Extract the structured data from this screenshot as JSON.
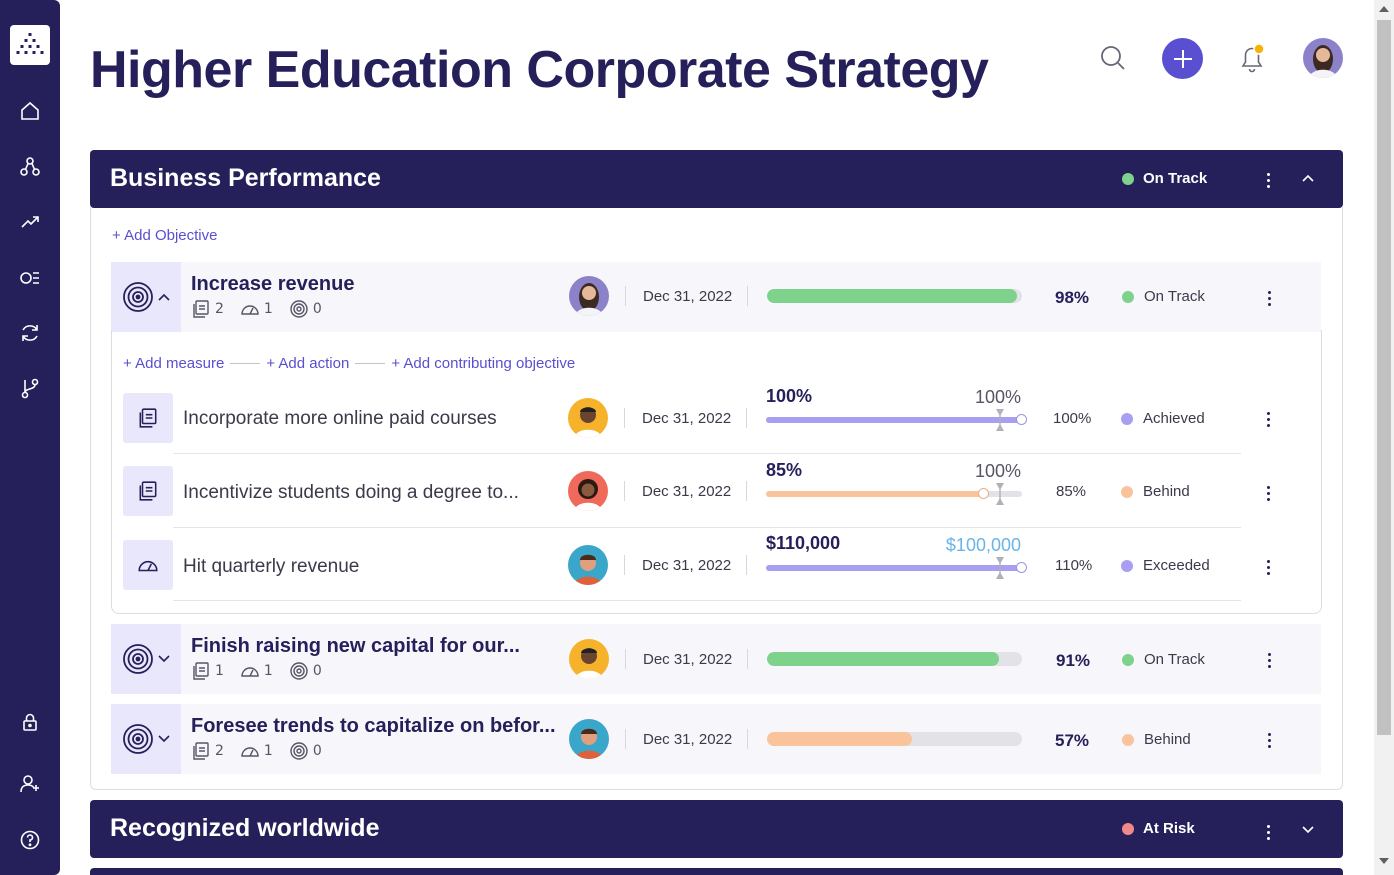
{
  "page": {
    "title": "Higher Education Corporate Strategy"
  },
  "colors": {
    "navy": "#25205a",
    "accent": "#5a4fd0",
    "on_track": "#7fd28b",
    "behind": "#f9c49b",
    "achieved": "#a99ff2",
    "at_risk": "#f08a8a",
    "notification_dot": "#f5b400"
  },
  "sidebar": {
    "logo": "app-logo",
    "items": [
      {
        "icon": "home-icon"
      },
      {
        "icon": "hierarchy-icon"
      },
      {
        "icon": "trending-up-icon"
      },
      {
        "icon": "checklist-icon"
      },
      {
        "icon": "sync-icon"
      },
      {
        "icon": "branch-icon"
      },
      {
        "icon": "lock-icon"
      },
      {
        "icon": "add-user-icon"
      },
      {
        "icon": "help-icon"
      }
    ]
  },
  "topbar": {
    "icons": [
      "search-icon",
      "plus-icon",
      "bell-icon",
      "avatar"
    ]
  },
  "sections": [
    {
      "title": "Business Performance",
      "status": "On Track",
      "add_objective": "+ Add Objective",
      "expanded_links": {
        "add_measure": "+ Add measure",
        "add_action": "+ Add action",
        "add_contributing": "+ Add contributing objective"
      },
      "objectives": [
        {
          "title": "Increase revenue",
          "counts": {
            "measures": "2",
            "metrics": "1",
            "objectives": "0"
          },
          "date": "Dec 31, 2022",
          "progress": 98,
          "pct": "98%",
          "status": "On Track"
        },
        {
          "title": "Finish raising new capital for our...",
          "counts": {
            "measures": "1",
            "metrics": "1",
            "objectives": "0"
          },
          "date": "Dec 31, 2022",
          "progress": 91,
          "pct": "91%",
          "status": "On Track"
        },
        {
          "title": "Foresee trends to capitalize on befor...",
          "counts": {
            "measures": "2",
            "metrics": "1",
            "objectives": "0"
          },
          "date": "Dec 31, 2022",
          "progress": 57,
          "pct": "57%",
          "status": "Behind"
        }
      ],
      "measures": [
        {
          "title": "Incorporate more online paid courses",
          "date": "Dec 31, 2022",
          "current": "100%",
          "target": "100%",
          "progress": 100,
          "pct": "100%",
          "status": "Achieved"
        },
        {
          "title": "Incentivize students doing a degree to...",
          "date": "Dec 31, 2022",
          "current": "85%",
          "target": "100%",
          "progress": 85,
          "pct": "85%",
          "status": "Behind"
        },
        {
          "title": "Hit quarterly revenue",
          "date": "Dec 31, 2022",
          "current": "$110,000",
          "target": "$100,000",
          "progress": 100,
          "pct": "110%",
          "status": "Exceeded"
        }
      ]
    },
    {
      "title": "Recognized worldwide",
      "status": "At Risk"
    }
  ]
}
